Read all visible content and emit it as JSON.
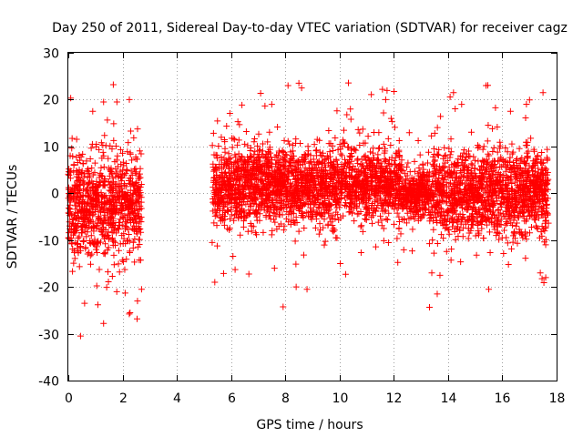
{
  "chart_data": {
    "type": "scatter",
    "title": "Day 250 of 2011, Sidereal Day-to-day VTEC variation (SDTVAR) for receiver cagz",
    "xlabel": "GPS time / hours",
    "ylabel": "SDTVAR / TECUs",
    "xlim": [
      0,
      18
    ],
    "ylim": [
      -40,
      30
    ],
    "xticks": [
      0,
      2,
      4,
      6,
      8,
      10,
      12,
      14,
      16,
      18
    ],
    "yticks": [
      -40,
      -30,
      -20,
      -10,
      0,
      10,
      20,
      30
    ],
    "grid": true,
    "marker": "+",
    "color": "#ff0000",
    "series": [
      {
        "name": "SDTVAR",
        "segments": [
          {
            "x_start": 0.0,
            "x_end": 2.7,
            "center": -2.5,
            "spread": 5.5
          },
          {
            "x_start": 5.3,
            "x_end": 12.3,
            "center": 1.5,
            "spread": 4.0
          },
          {
            "x_start": 12.3,
            "x_end": 13.3,
            "center": 0.0,
            "spread": 2.5
          },
          {
            "x_start": 13.3,
            "x_end": 17.7,
            "center": 0.0,
            "spread": 4.5
          }
        ],
        "outliers": [
          {
            "x": 0.45,
            "y": -30.5
          },
          {
            "x": 0.6,
            "y": -23.5
          },
          {
            "x": 1.3,
            "y": -27.8
          },
          {
            "x": 2.55,
            "y": -23.0
          },
          {
            "x": 2.7,
            "y": -20.5
          },
          {
            "x": 1.3,
            "y": 19.5
          },
          {
            "x": 2.25,
            "y": 20.0
          },
          {
            "x": 0.9,
            "y": 17.5
          },
          {
            "x": 5.4,
            "y": -19.0
          },
          {
            "x": 8.1,
            "y": 23.0
          },
          {
            "x": 8.5,
            "y": 23.5
          },
          {
            "x": 8.6,
            "y": 22.5
          },
          {
            "x": 7.5,
            "y": 19.0
          },
          {
            "x": 8.4,
            "y": -20.0
          },
          {
            "x": 8.8,
            "y": -20.5
          },
          {
            "x": 7.6,
            "y": -16.0
          },
          {
            "x": 11.7,
            "y": 20.0
          },
          {
            "x": 10.4,
            "y": 18.0
          },
          {
            "x": 13.6,
            "y": -21.5
          },
          {
            "x": 14.2,
            "y": 21.5
          },
          {
            "x": 15.4,
            "y": 23.0
          },
          {
            "x": 14.5,
            "y": 19.0
          },
          {
            "x": 17.5,
            "y": 21.5
          },
          {
            "x": 15.5,
            "y": -20.5
          },
          {
            "x": 17.6,
            "y": -18.0
          },
          {
            "x": 17.4,
            "y": -17.0
          },
          {
            "x": 13.4,
            "y": -17.0
          },
          {
            "x": 16.3,
            "y": 17.5
          }
        ]
      }
    ]
  }
}
